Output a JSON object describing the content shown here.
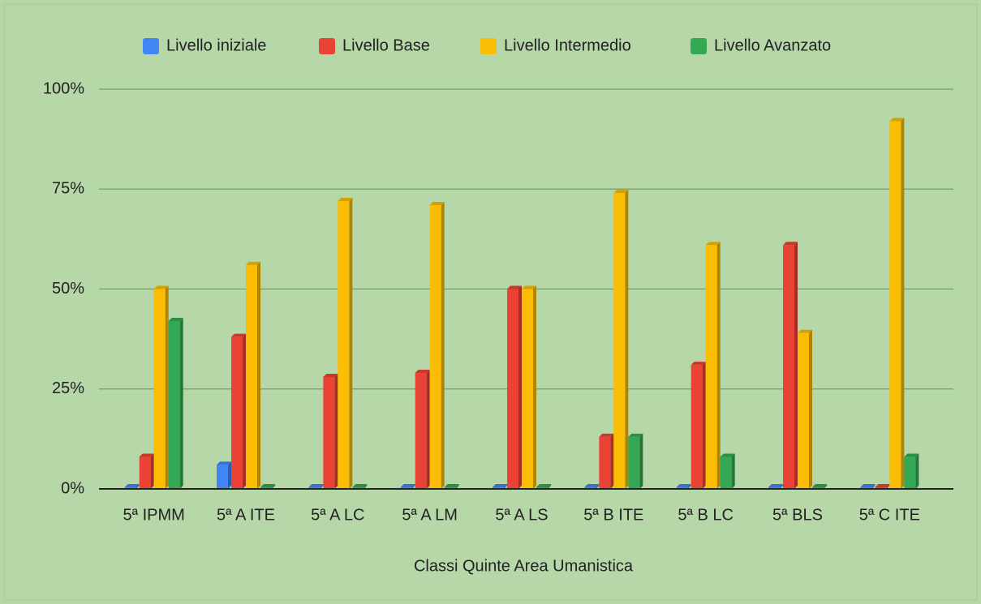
{
  "chart_data": {
    "type": "bar",
    "xlabel": "Classi Quinte Area Umanistica",
    "categories": [
      "5ª IPMM",
      "5ª A ITE",
      "5ª A LC",
      "5ª A LM",
      "5ª A LS",
      "5ª B ITE",
      "5ª B LC",
      "5ª BLS",
      "5ª C ITE"
    ],
    "series": [
      {
        "name": "Livello iniziale",
        "color": "#4285f4",
        "values": [
          0,
          6,
          0,
          0,
          0,
          0,
          0,
          0,
          0
        ]
      },
      {
        "name": "Livello Base",
        "color": "#ea4335",
        "values": [
          8,
          38,
          28,
          29,
          50,
          13,
          31,
          61,
          0
        ]
      },
      {
        "name": "Livello Intermedio",
        "color": "#fbbc04",
        "values": [
          50,
          56,
          72,
          71,
          50,
          74,
          61,
          39,
          92
        ]
      },
      {
        "name": "Livello Avanzato",
        "color": "#34a853",
        "values": [
          42,
          0,
          0,
          0,
          0,
          13,
          8,
          0,
          8
        ]
      }
    ],
    "ylim": [
      0,
      100
    ],
    "yticks": [
      {
        "value": 0,
        "label": "0%"
      },
      {
        "value": 25,
        "label": "25%"
      },
      {
        "value": 50,
        "label": "50%"
      },
      {
        "value": 75,
        "label": "75%"
      },
      {
        "value": 100,
        "label": "100%"
      }
    ],
    "grid": true,
    "legend": "top"
  }
}
